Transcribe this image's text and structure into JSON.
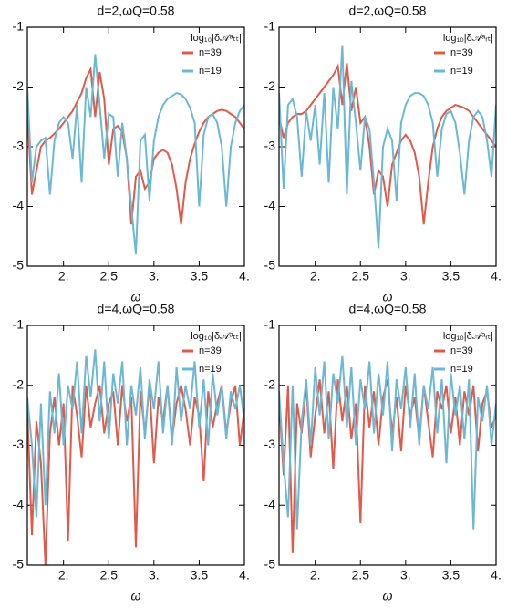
{
  "chart_data": [
    {
      "type": "line",
      "title": "d=2,ωQ=0.58",
      "x_label": "ω",
      "legend_title": "log₁₀|δ𝒜ᵃₜₜ|",
      "x": [
        1.6,
        1.65,
        1.7,
        1.75,
        1.8,
        1.85,
        1.9,
        1.95,
        2.0,
        2.05,
        2.1,
        2.15,
        2.2,
        2.25,
        2.3,
        2.35,
        2.4,
        2.45,
        2.5,
        2.55,
        2.6,
        2.65,
        2.7,
        2.75,
        2.8,
        2.85,
        2.9,
        2.95,
        3.0,
        3.05,
        3.1,
        3.15,
        3.2,
        3.25,
        3.3,
        3.35,
        3.4,
        3.45,
        3.5,
        3.55,
        3.6,
        3.65,
        3.7,
        3.75,
        3.8,
        3.85,
        3.9,
        3.95,
        4.0
      ],
      "series": [
        {
          "name": "n=39",
          "color": "#e05a4a",
          "values": [
            -2.4,
            -3.8,
            -3.4,
            -3.0,
            -2.9,
            -2.85,
            -2.78,
            -2.7,
            -2.6,
            -2.5,
            -2.4,
            -2.25,
            -2.1,
            -1.85,
            -1.7,
            -2.5,
            -1.75,
            -2.2,
            -3.3,
            -2.7,
            -2.65,
            -2.75,
            -3.2,
            -4.3,
            -3.5,
            -3.4,
            -3.7,
            -3.6,
            -3.2,
            -3.1,
            -3.05,
            -3.1,
            -3.3,
            -3.7,
            -4.3,
            -3.6,
            -3.2,
            -2.95,
            -2.75,
            -2.6,
            -2.5,
            -2.45,
            -2.4,
            -2.38,
            -2.4,
            -2.45,
            -2.5,
            -2.6,
            -2.7
          ]
        },
        {
          "name": "n=19",
          "color": "#6bb8d4",
          "values": [
            -2.0,
            -3.6,
            -3.0,
            -2.9,
            -2.85,
            -3.8,
            -2.9,
            -2.6,
            -2.5,
            -2.6,
            -3.2,
            -2.3,
            -3.6,
            -2.0,
            -2.5,
            -1.45,
            -2.3,
            -3.2,
            -2.45,
            -2.5,
            -3.5,
            -2.6,
            -3.2,
            -4.0,
            -4.8,
            -2.9,
            -2.8,
            -3.9,
            -2.9,
            -2.5,
            -2.3,
            -2.2,
            -2.15,
            -2.1,
            -2.12,
            -2.2,
            -2.35,
            -2.6,
            -4.0,
            -2.8,
            -2.5,
            -2.45,
            -2.6,
            -3.0,
            -4.0,
            -3.0,
            -2.6,
            -2.4,
            -2.3
          ]
        }
      ],
      "xlim": [
        1.6,
        4.0
      ],
      "xticks": [
        {
          "value": 2,
          "label": "2."
        },
        2.5,
        {
          "value": 3,
          "label": "3."
        },
        3.5,
        {
          "value": 4,
          "label": "4."
        }
      ],
      "ylim": [
        -5,
        -1
      ],
      "yticks": [
        -5,
        -4,
        -3,
        -2,
        -1
      ]
    },
    {
      "type": "line",
      "title": "d=2,ωQ=0.58",
      "x_label": "ω",
      "legend_title": "log₁₀|δ𝒜ᵃᵣₜ|",
      "x": [
        1.6,
        1.65,
        1.7,
        1.75,
        1.8,
        1.85,
        1.9,
        1.95,
        2.0,
        2.05,
        2.1,
        2.15,
        2.2,
        2.25,
        2.3,
        2.35,
        2.4,
        2.45,
        2.5,
        2.55,
        2.6,
        2.65,
        2.7,
        2.75,
        2.8,
        2.85,
        2.9,
        2.95,
        3.0,
        3.05,
        3.1,
        3.15,
        3.2,
        3.25,
        3.3,
        3.35,
        3.4,
        3.45,
        3.5,
        3.55,
        3.6,
        3.65,
        3.7,
        3.75,
        3.8,
        3.85,
        3.9,
        3.95,
        4.0
      ],
      "series": [
        {
          "name": "n=39",
          "color": "#e05a4a",
          "values": [
            -2.5,
            -2.85,
            -2.6,
            -2.5,
            -2.45,
            -2.45,
            -2.4,
            -2.3,
            -2.2,
            -2.1,
            -2.0,
            -1.9,
            -1.8,
            -1.65,
            -2.3,
            -1.6,
            -2.4,
            -2.0,
            -2.6,
            -2.5,
            -3.0,
            -3.8,
            -3.4,
            -3.5,
            -4.0,
            -3.3,
            -3.1,
            -2.9,
            -2.8,
            -2.9,
            -3.1,
            -3.5,
            -4.3,
            -3.6,
            -3.0,
            -2.7,
            -2.5,
            -2.4,
            -2.35,
            -2.3,
            -2.32,
            -2.35,
            -2.4,
            -2.5,
            -2.6,
            -2.7,
            -2.8,
            -2.9,
            -3.0
          ]
        },
        {
          "name": "n=19",
          "color": "#6bb8d4",
          "values": [
            -2.1,
            -3.7,
            -2.3,
            -2.2,
            -2.5,
            -3.5,
            -2.4,
            -2.9,
            -2.3,
            -3.3,
            -2.1,
            -3.6,
            -2.0,
            -2.7,
            -1.3,
            -3.8,
            -1.9,
            -2.6,
            -3.4,
            -2.5,
            -2.7,
            -3.6,
            -4.7,
            -3.0,
            -2.7,
            -2.9,
            -3.9,
            -2.6,
            -2.3,
            -2.15,
            -2.1,
            -2.1,
            -2.15,
            -2.3,
            -2.6,
            -3.5,
            -2.7,
            -2.45,
            -2.4,
            -2.6,
            -3.1,
            -3.8,
            -2.9,
            -2.5,
            -2.4,
            -2.5,
            -2.9,
            -3.5,
            -2.3
          ]
        }
      ],
      "xlim": [
        1.6,
        4.0
      ],
      "xticks": [
        {
          "value": 2,
          "label": "2."
        },
        2.5,
        {
          "value": 3,
          "label": "3."
        },
        3.5,
        {
          "value": 4,
          "label": "4."
        }
      ],
      "ylim": [
        -5,
        -1
      ],
      "yticks": [
        -5,
        -4,
        -3,
        -2,
        -1
      ]
    },
    {
      "type": "line",
      "title": "d=4,ωQ=0.58",
      "x_label": "ω",
      "legend_title": "log₁₀|δ𝒜ᵃₜₜ|",
      "x": [
        1.6,
        1.65,
        1.7,
        1.75,
        1.8,
        1.85,
        1.9,
        1.95,
        2.0,
        2.05,
        2.1,
        2.15,
        2.2,
        2.25,
        2.3,
        2.35,
        2.4,
        2.45,
        2.5,
        2.55,
        2.6,
        2.65,
        2.7,
        2.75,
        2.8,
        2.85,
        2.9,
        2.95,
        3.0,
        3.05,
        3.1,
        3.15,
        3.2,
        3.25,
        3.3,
        3.35,
        3.4,
        3.45,
        3.5,
        3.55,
        3.6,
        3.65,
        3.7,
        3.75,
        3.8,
        3.85,
        3.9,
        3.95,
        4.0
      ],
      "series": [
        {
          "name": "n=39",
          "color": "#e05a4a",
          "values": [
            -2.4,
            -4.5,
            -2.6,
            -3.3,
            -5.0,
            -2.8,
            -2.2,
            -3.0,
            -2.3,
            -4.6,
            -2.0,
            -2.5,
            -3.2,
            -2.0,
            -2.7,
            -2.3,
            -2.0,
            -2.8,
            -2.3,
            -2.1,
            -3.0,
            -2.0,
            -2.6,
            -2.2,
            -4.7,
            -2.1,
            -2.8,
            -2.0,
            -3.3,
            -2.2,
            -2.6,
            -2.0,
            -2.9,
            -2.3,
            -2.0,
            -2.4,
            -3.0,
            -2.2,
            -2.5,
            -3.6,
            -2.1,
            -2.7,
            -2.3,
            -2.0,
            -2.8,
            -2.3,
            -2.0,
            -3.0,
            -2.4
          ]
        },
        {
          "name": "n=19",
          "color": "#6bb8d4",
          "values": [
            -2.2,
            -3.0,
            -4.2,
            -2.3,
            -4.0,
            -2.1,
            -2.8,
            -1.8,
            -3.0,
            -2.0,
            -2.4,
            -1.6,
            -2.8,
            -1.5,
            -2.2,
            -1.4,
            -2.6,
            -1.6,
            -2.9,
            -1.8,
            -2.3,
            -1.6,
            -3.0,
            -2.0,
            -2.5,
            -1.7,
            -2.9,
            -1.9,
            -2.4,
            -1.6,
            -2.8,
            -2.0,
            -3.0,
            -1.7,
            -2.6,
            -2.0,
            -2.4,
            -1.6,
            -2.7,
            -1.9,
            -3.0,
            -1.8,
            -2.5,
            -2.0,
            -2.9,
            -2.1,
            -2.4,
            -2.0,
            -2.6
          ]
        }
      ],
      "xlim": [
        1.6,
        4.0
      ],
      "xticks": [
        {
          "value": 2,
          "label": "2."
        },
        2.5,
        {
          "value": 3,
          "label": "3."
        },
        3.5,
        {
          "value": 4,
          "label": "4."
        }
      ],
      "ylim": [
        -5,
        -1
      ],
      "yticks": [
        -5,
        -4,
        -3,
        -2,
        -1
      ]
    },
    {
      "type": "line",
      "title": "d=4,ωQ=0.58",
      "x_label": "ω",
      "legend_title": "log₁₀|δ𝒜ᵃᵣₜ|",
      "x": [
        1.6,
        1.65,
        1.7,
        1.75,
        1.8,
        1.85,
        1.9,
        1.95,
        2.0,
        2.05,
        2.1,
        2.15,
        2.2,
        2.25,
        2.3,
        2.35,
        2.4,
        2.45,
        2.5,
        2.55,
        2.6,
        2.65,
        2.7,
        2.75,
        2.8,
        2.85,
        2.9,
        2.95,
        3.0,
        3.05,
        3.1,
        3.15,
        3.2,
        3.25,
        3.3,
        3.35,
        3.4,
        3.45,
        3.5,
        3.55,
        3.6,
        3.65,
        3.7,
        3.75,
        3.8,
        3.85,
        3.9,
        3.95,
        4.0
      ],
      "series": [
        {
          "name": "n=39",
          "color": "#e05a4a",
          "values": [
            -2.2,
            -3.5,
            -2.0,
            -4.8,
            -2.3,
            -2.8,
            -2.0,
            -3.2,
            -2.5,
            -1.9,
            -2.8,
            -2.1,
            -3.4,
            -1.9,
            -2.6,
            -2.0,
            -2.9,
            -2.3,
            -4.3,
            -2.0,
            -2.7,
            -2.1,
            -3.0,
            -2.2,
            -1.9,
            -2.8,
            -2.2,
            -3.1,
            -2.0,
            -2.5,
            -2.2,
            -2.9,
            -2.0,
            -2.6,
            -3.2,
            -2.1,
            -2.4,
            -2.0,
            -2.8,
            -2.2,
            -3.0,
            -2.1,
            -2.5,
            -2.0,
            -3.1,
            -2.3,
            -2.1,
            -2.7,
            -2.5
          ]
        },
        {
          "name": "n=19",
          "color": "#6bb8d4",
          "values": [
            -2.1,
            -3.3,
            -4.2,
            -2.0,
            -4.4,
            -2.6,
            -1.9,
            -3.0,
            -1.7,
            -2.5,
            -1.6,
            -2.9,
            -1.8,
            -2.3,
            -1.5,
            -2.7,
            -1.7,
            -3.0,
            -1.9,
            -2.4,
            -1.6,
            -2.8,
            -1.8,
            -2.5,
            -1.6,
            -3.1,
            -1.9,
            -2.4,
            -1.7,
            -2.7,
            -1.8,
            -3.0,
            -2.0,
            -2.4,
            -1.7,
            -2.8,
            -1.9,
            -3.3,
            -1.8,
            -2.5,
            -2.0,
            -2.9,
            -1.9,
            -4.4,
            -2.2,
            -2.6,
            -2.0,
            -3.0,
            -2.3
          ]
        }
      ],
      "xlim": [
        1.6,
        4.0
      ],
      "xticks": [
        {
          "value": 2,
          "label": "2."
        },
        2.5,
        {
          "value": 3,
          "label": "3."
        },
        3.5,
        {
          "value": 4,
          "label": "4."
        }
      ],
      "ylim": [
        -5,
        -1
      ],
      "yticks": [
        -5,
        -4,
        -3,
        -2,
        -1
      ]
    }
  ]
}
